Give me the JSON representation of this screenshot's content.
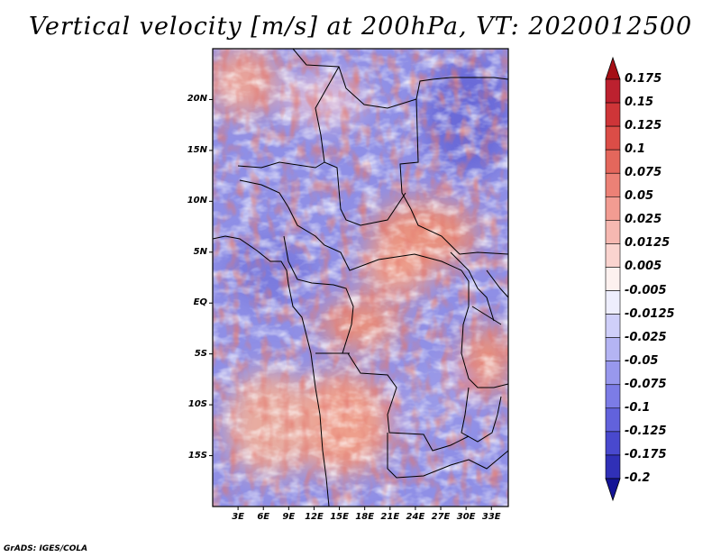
{
  "title": "Vertical velocity [m/s] at 200hPa, VT: 2020012500",
  "credit": "GrADS: IGES/COLA",
  "map": {
    "variable": "Vertical velocity",
    "units": "m/s",
    "level": "200hPa",
    "valid_time": "2020012500",
    "lat_range": [
      -20,
      25
    ],
    "lon_range": [
      0,
      35
    ],
    "lat_ticks": [
      {
        "value": 20,
        "label": "20N"
      },
      {
        "value": 15,
        "label": "15N"
      },
      {
        "value": 10,
        "label": "10N"
      },
      {
        "value": 5,
        "label": "5N"
      },
      {
        "value": 0,
        "label": "EQ"
      },
      {
        "value": -5,
        "label": "5S"
      },
      {
        "value": -10,
        "label": "10S"
      },
      {
        "value": -15,
        "label": "15S"
      }
    ],
    "lon_ticks": [
      {
        "value": 3,
        "label": "3E"
      },
      {
        "value": 6,
        "label": "6E"
      },
      {
        "value": 9,
        "label": "9E"
      },
      {
        "value": 12,
        "label": "12E"
      },
      {
        "value": 15,
        "label": "15E"
      },
      {
        "value": 18,
        "label": "18E"
      },
      {
        "value": 21,
        "label": "21E"
      },
      {
        "value": 24,
        "label": "24E"
      },
      {
        "value": 27,
        "label": "27E"
      },
      {
        "value": 30,
        "label": "30E"
      },
      {
        "value": 33,
        "label": "33E"
      }
    ]
  },
  "colorbar": {
    "levels": [
      {
        "label": "0.175",
        "color": "#b2182b"
      },
      {
        "label": "0.15",
        "color": "#c52a32"
      },
      {
        "label": "0.125",
        "color": "#d6403e"
      },
      {
        "label": "0.1",
        "color": "#e05a50"
      },
      {
        "label": "0.075",
        "color": "#e87468"
      },
      {
        "label": "0.05",
        "color": "#ef8e83"
      },
      {
        "label": "0.025",
        "color": "#f4aaa1"
      },
      {
        "label": "0.0125",
        "color": "#f8c6c0"
      },
      {
        "label": "0.005",
        "color": "#fbe2de"
      },
      {
        "label": "-0.005",
        "color": "#ffffff"
      },
      {
        "label": "-0.0125",
        "color": "#dcdcfb"
      },
      {
        "label": "-0.025",
        "color": "#c2c2f6"
      },
      {
        "label": "-0.05",
        "color": "#a6a6f0"
      },
      {
        "label": "-0.075",
        "color": "#8a8aea"
      },
      {
        "label": "-0.1",
        "color": "#6e6ee2"
      },
      {
        "label": "-0.125",
        "color": "#5555d6"
      },
      {
        "label": "-0.175",
        "color": "#3c3cc6"
      },
      {
        "label": "-0.2",
        "color": "#2424a8"
      }
    ],
    "top_color": "#a50f15",
    "bottom_color": "#141496"
  }
}
